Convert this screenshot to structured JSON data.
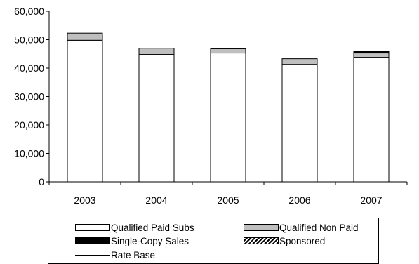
{
  "chart_data": {
    "type": "bar",
    "stacked": true,
    "categories": [
      "2003",
      "2004",
      "2005",
      "2006",
      "2007"
    ],
    "series": [
      {
        "name": "Qualified Paid Subs",
        "color": "#ffffff",
        "values": [
          49800,
          44800,
          45300,
          41300,
          43800
        ]
      },
      {
        "name": "Qualified Non Paid",
        "color": "#bfbfbf",
        "values": [
          2500,
          2200,
          1500,
          2000,
          1500
        ]
      },
      {
        "name": "Single-Copy Sales",
        "color": "#000000",
        "values": [
          0,
          0,
          0,
          0,
          700
        ]
      },
      {
        "name": "Sponsored",
        "color": "hatch",
        "values": [
          0,
          0,
          0,
          0,
          0
        ]
      }
    ],
    "lines": [
      {
        "name": "Rate Base",
        "color": "#000000",
        "values": null
      }
    ],
    "ylim": [
      0,
      60000
    ],
    "yticks": [
      "0",
      "10,000",
      "20,000",
      "30,000",
      "40,000",
      "50,000",
      "60,000"
    ],
    "title": "",
    "xlabel": "",
    "ylabel": "",
    "grid": false,
    "legend_position": "bottom"
  }
}
